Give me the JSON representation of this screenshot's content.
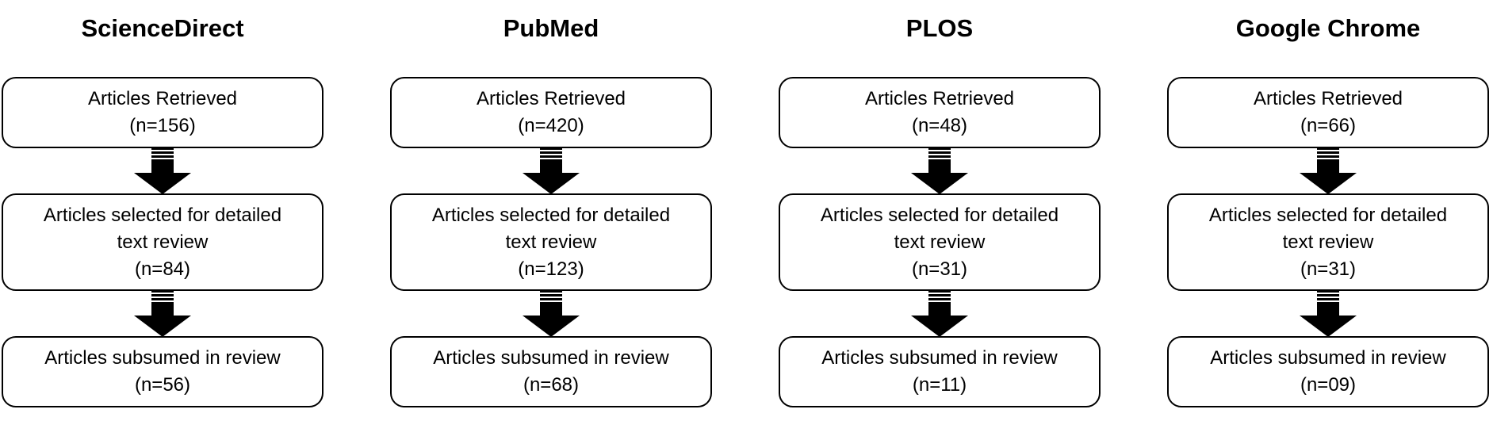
{
  "columns": [
    {
      "title": "ScienceDirect",
      "retrieved": {
        "label": "Articles Retrieved",
        "count": "(n=156)"
      },
      "selected": {
        "label_line1": "Articles selected for detailed",
        "label_line2": "text review",
        "count": "(n=84)"
      },
      "subsumed": {
        "label": "Articles subsumed in review",
        "count": "(n=56)"
      }
    },
    {
      "title": "PubMed",
      "retrieved": {
        "label": "Articles Retrieved",
        "count": "(n=420)"
      },
      "selected": {
        "label_line1": "Articles selected for detailed",
        "label_line2": "text review",
        "count": "(n=123)"
      },
      "subsumed": {
        "label": "Articles subsumed in review",
        "count": "(n=68)"
      }
    },
    {
      "title": "PLOS",
      "retrieved": {
        "label": "Articles Retrieved",
        "count": "(n=48)"
      },
      "selected": {
        "label_line1": "Articles selected for detailed",
        "label_line2": "text review",
        "count": "(n=31)"
      },
      "subsumed": {
        "label": "Articles subsumed in review",
        "count": "(n=11)"
      }
    },
    {
      "title": "Google Chrome",
      "retrieved": {
        "label": "Articles Retrieved",
        "count": "(n=66)"
      },
      "selected": {
        "label_line1": "Articles selected for detailed",
        "label_line2": "text review",
        "count": "(n=31)"
      },
      "subsumed": {
        "label": "Articles subsumed in review",
        "count": "(n=09)"
      }
    }
  ],
  "colors": {
    "border": "#000000",
    "arrow": "#000000",
    "background": "#ffffff"
  },
  "icons": {
    "flow_arrow": "down-arrow-icon"
  }
}
